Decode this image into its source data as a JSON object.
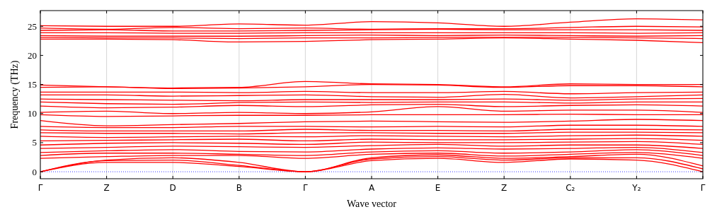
{
  "chart_data": {
    "type": "line",
    "xlabel": "Wave vector",
    "ylabel": "Frequency (THz)",
    "categories": [
      "Γ",
      "Z",
      "D",
      "B",
      "Γ",
      "A",
      "E",
      "Z",
      "C₂",
      "Y₂",
      "Γ"
    ],
    "ylim": [
      -1.2,
      27.7
    ],
    "yticks": [
      0,
      5,
      10,
      15,
      20,
      25
    ],
    "grid": "x",
    "marker": "none",
    "line_style": "solid",
    "ref_lines": [
      {
        "axis": "y",
        "value": 0,
        "color": "#0000ff",
        "line_style": "dotted"
      }
    ],
    "series": [
      {
        "color": "#ff0000",
        "values": [
          0,
          1.6,
          1.6,
          0.9,
          0,
          1.9,
          2.3,
          1.6,
          2.2,
          2.0,
          0
        ]
      },
      {
        "color": "#ff0000",
        "values": [
          0,
          1.9,
          2.0,
          1.1,
          0,
          2.2,
          2.6,
          2.0,
          2.4,
          2.4,
          0.5
        ]
      },
      {
        "color": "#ff0000",
        "values": [
          0,
          2.0,
          2.4,
          1.6,
          0,
          2.4,
          2.9,
          2.3,
          2.6,
          3.0,
          1.0
        ]
      },
      {
        "color": "#ff0000",
        "values": [
          2.3,
          2.6,
          2.8,
          2.8,
          2.3,
          3.0,
          3.2,
          2.7,
          3.0,
          3.3,
          2.3
        ]
      },
      {
        "color": "#ff0000",
        "values": [
          2.8,
          3.2,
          3.2,
          3.0,
          2.8,
          3.4,
          3.6,
          3.2,
          3.4,
          3.8,
          2.8
        ]
      },
      {
        "color": "#ff0000",
        "values": [
          3.3,
          3.6,
          3.8,
          3.5,
          3.4,
          3.9,
          4.1,
          3.9,
          4.0,
          4.2,
          3.3
        ]
      },
      {
        "color": "#ff0000",
        "values": [
          4.0,
          4.2,
          4.4,
          4.3,
          4.2,
          4.5,
          4.7,
          4.4,
          4.6,
          4.6,
          4.0
        ]
      },
      {
        "color": "#ff0000",
        "values": [
          4.6,
          4.9,
          5.0,
          4.9,
          4.7,
          5.1,
          5.0,
          5.0,
          5.1,
          5.2,
          4.7
        ]
      },
      {
        "color": "#ff0000",
        "values": [
          5.3,
          5.4,
          5.5,
          5.6,
          5.3,
          5.6,
          5.5,
          5.5,
          5.6,
          5.7,
          5.4
        ]
      },
      {
        "color": "#ff0000",
        "values": [
          6.1,
          5.9,
          6.0,
          6.1,
          6.0,
          6.2,
          6.1,
          6.0,
          6.2,
          6.3,
          6.1
        ]
      },
      {
        "color": "#ff0000",
        "values": [
          6.7,
          6.6,
          6.6,
          6.5,
          6.7,
          6.7,
          6.6,
          6.6,
          6.8,
          6.8,
          6.7
        ]
      },
      {
        "color": "#ff0000",
        "values": [
          7.2,
          7.0,
          7.0,
          7.0,
          7.3,
          7.1,
          7.1,
          7.0,
          7.3,
          7.3,
          7.2
        ]
      },
      {
        "color": "#ff0000",
        "values": [
          7.8,
          7.6,
          7.6,
          7.8,
          7.8,
          7.7,
          7.8,
          7.7,
          8.0,
          8.0,
          7.8
        ]
      },
      {
        "color": "#ff0000",
        "values": [
          8.8,
          7.9,
          8.1,
          8.3,
          8.6,
          8.7,
          8.6,
          8.5,
          8.7,
          9.0,
          8.8
        ]
      },
      {
        "color": "#ff0000",
        "values": [
          9.8,
          9.5,
          9.6,
          9.7,
          9.7,
          9.8,
          9.8,
          9.8,
          9.9,
          9.8,
          9.8
        ]
      },
      {
        "color": "#ff0000",
        "values": [
          10.2,
          10.4,
          10.0,
          10.2,
          10.0,
          10.3,
          11.2,
          10.4,
          10.6,
          10.6,
          10.2
        ]
      },
      {
        "color": "#ff0000",
        "values": [
          11.3,
          11.0,
          11.1,
          11.4,
          11.2,
          11.5,
          11.6,
          11.2,
          11.4,
          11.5,
          11.3
        ]
      },
      {
        "color": "#ff0000",
        "values": [
          12.0,
          11.7,
          11.6,
          11.9,
          12.0,
          11.9,
          12.0,
          12.0,
          11.8,
          12.0,
          12.0
        ]
      },
      {
        "color": "#ff0000",
        "values": [
          12.5,
          12.4,
          12.3,
          12.2,
          12.4,
          12.4,
          12.4,
          12.5,
          12.3,
          12.5,
          12.6
        ]
      },
      {
        "color": "#ff0000",
        "values": [
          13.2,
          13.2,
          13.0,
          13.1,
          13.2,
          12.9,
          12.8,
          13.3,
          12.7,
          12.9,
          13.2
        ]
      },
      {
        "color": "#ff0000",
        "values": [
          13.7,
          13.7,
          13.7,
          13.6,
          13.8,
          13.6,
          13.6,
          13.8,
          13.4,
          13.6,
          13.7
        ]
      },
      {
        "color": "#ff0000",
        "values": [
          14.5,
          14.6,
          14.3,
          14.4,
          14.6,
          15.0,
          14.9,
          14.5,
          14.8,
          14.8,
          14.6
        ]
      },
      {
        "color": "#ff0000",
        "values": [
          14.9,
          14.6,
          14.4,
          14.5,
          15.5,
          15.1,
          15.0,
          14.6,
          15.1,
          15.0,
          15.0
        ]
      },
      {
        "color": "#ff0000",
        "values": [
          22.8,
          22.8,
          22.7,
          22.3,
          22.4,
          22.7,
          22.8,
          23.0,
          22.8,
          22.6,
          22.2
        ]
      },
      {
        "color": "#ff0000",
        "values": [
          23.1,
          23.0,
          23.0,
          22.9,
          23.0,
          23.0,
          23.1,
          23.1,
          23.1,
          23.0,
          22.9
        ]
      },
      {
        "color": "#ff0000",
        "values": [
          23.4,
          23.3,
          23.3,
          23.3,
          23.4,
          23.5,
          23.4,
          23.5,
          23.4,
          23.3,
          23.4
        ]
      },
      {
        "color": "#ff0000",
        "values": [
          23.9,
          23.9,
          23.8,
          23.8,
          23.9,
          23.9,
          23.9,
          23.9,
          23.9,
          23.8,
          23.9
        ]
      },
      {
        "color": "#ff0000",
        "values": [
          24.3,
          24.4,
          24.2,
          24.2,
          24.3,
          24.4,
          24.5,
          24.4,
          24.4,
          24.4,
          24.3
        ]
      },
      {
        "color": "#ff0000",
        "values": [
          24.7,
          24.5,
          24.8,
          24.6,
          24.7,
          24.5,
          24.6,
          24.6,
          24.8,
          25.0,
          24.9
        ]
      },
      {
        "color": "#ff0000",
        "values": [
          25.1,
          25.0,
          25.0,
          25.4,
          25.2,
          25.8,
          25.6,
          25.0,
          25.7,
          26.3,
          26.1
        ]
      }
    ]
  }
}
